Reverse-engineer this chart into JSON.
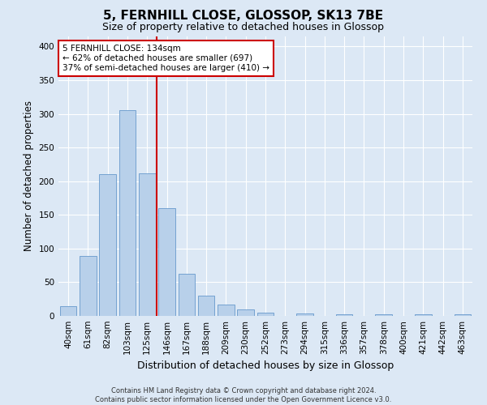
{
  "title": "5, FERNHILL CLOSE, GLOSSOP, SK13 7BE",
  "subtitle": "Size of property relative to detached houses in Glossop",
  "xlabel": "Distribution of detached houses by size in Glossop",
  "ylabel": "Number of detached properties",
  "footer_line1": "Contains HM Land Registry data © Crown copyright and database right 2024.",
  "footer_line2": "Contains public sector information licensed under the Open Government Licence v3.0.",
  "bin_labels": [
    "40sqm",
    "61sqm",
    "82sqm",
    "103sqm",
    "125sqm",
    "146sqm",
    "167sqm",
    "188sqm",
    "209sqm",
    "230sqm",
    "252sqm",
    "273sqm",
    "294sqm",
    "315sqm",
    "336sqm",
    "357sqm",
    "378sqm",
    "400sqm",
    "421sqm",
    "442sqm",
    "463sqm"
  ],
  "bar_heights": [
    15,
    89,
    210,
    305,
    212,
    160,
    63,
    30,
    17,
    10,
    5,
    0,
    4,
    0,
    2,
    0,
    3,
    0,
    2,
    0,
    2
  ],
  "bar_color": "#b8d0ea",
  "bar_edge_color": "#6699cc",
  "bar_width": 0.85,
  "vline_x": 4.5,
  "vline_color": "#cc0000",
  "annotation_text": "5 FERNHILL CLOSE: 134sqm\n← 62% of detached houses are smaller (697)\n37% of semi-detached houses are larger (410) →",
  "annotation_box_color": "#ffffff",
  "annotation_box_edge": "#cc0000",
  "ylim": [
    0,
    415
  ],
  "yticks": [
    0,
    50,
    100,
    150,
    200,
    250,
    300,
    350,
    400
  ],
  "background_color": "#dce8f5",
  "plot_bg_color": "#dce8f5",
  "grid_color": "#ffffff",
  "title_fontsize": 11,
  "subtitle_fontsize": 9,
  "tick_fontsize": 7.5,
  "ylabel_fontsize": 8.5,
  "xlabel_fontsize": 9
}
